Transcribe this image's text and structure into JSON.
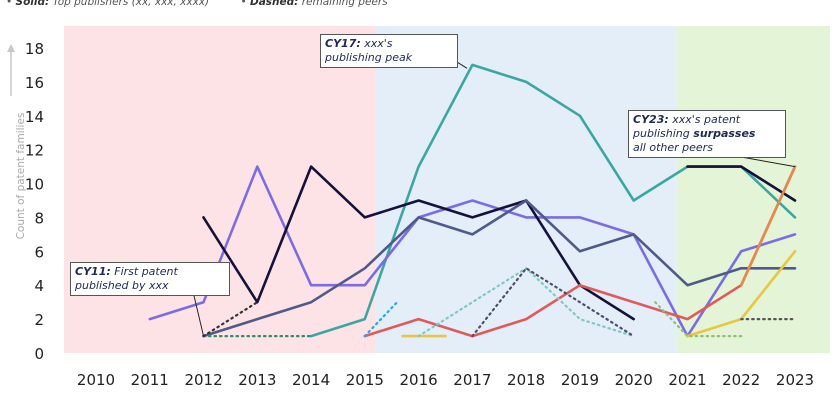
{
  "legend": {
    "solid_label": "Solid:",
    "solid_text": "Top publishers (xx, xxx, xxxx)",
    "dashed_label": "Dashed:",
    "dashed_text": "remaining peers"
  },
  "chart_data": {
    "type": "line",
    "ylabel": "Count of patent families",
    "ylim": [
      0,
      18
    ],
    "yticks": [
      0,
      2,
      4,
      6,
      8,
      10,
      12,
      14,
      16,
      18
    ],
    "x": [
      "2010",
      "2011",
      "2012",
      "2013",
      "2014",
      "2015",
      "2016",
      "2017",
      "2018",
      "2019",
      "2020",
      "2021",
      "2022",
      "2023"
    ],
    "periods": [
      {
        "from": 2010,
        "to": 2015.2,
        "color": "#fde3e6"
      },
      {
        "from": 2015.2,
        "to": 2020.8,
        "color": "#e3eef9"
      },
      {
        "from": 2020.8,
        "to": 2023.4,
        "color": "#e4f4d6"
      }
    ],
    "series": [
      {
        "color": "#3aa8a0",
        "style": "solid",
        "points": [
          [
            2014,
            1
          ],
          [
            2015,
            2
          ],
          [
            2016,
            11
          ],
          [
            2017,
            17
          ],
          [
            2018,
            16
          ],
          [
            2019,
            14
          ],
          [
            2020,
            9
          ],
          [
            2021,
            11
          ],
          [
            2022,
            11
          ],
          [
            2023,
            8
          ]
        ]
      },
      {
        "color": "#7b6be8",
        "style": "solid",
        "points": [
          [
            2011,
            2
          ],
          [
            2012,
            3
          ],
          [
            2013,
            11
          ],
          [
            2014,
            4
          ],
          [
            2015,
            4
          ],
          [
            2016,
            8
          ],
          [
            2017,
            9
          ],
          [
            2018,
            8
          ],
          [
            2019,
            8
          ],
          [
            2020,
            7
          ],
          [
            2021,
            1
          ],
          [
            2022,
            6
          ],
          [
            2023,
            7
          ]
        ]
      },
      {
        "color": "#15123a",
        "style": "solid",
        "points": [
          [
            2012,
            8
          ],
          [
            2013,
            3
          ],
          [
            2014,
            11
          ],
          [
            2015,
            8
          ],
          [
            2016,
            9
          ],
          [
            2017,
            8
          ],
          [
            2018,
            9
          ],
          [
            2019,
            4
          ],
          [
            2020,
            2
          ]
        ]
      },
      {
        "color": "#15123a",
        "style": "solid",
        "points": [
          [
            2021,
            11
          ],
          [
            2022,
            11
          ],
          [
            2023,
            9
          ]
        ]
      },
      {
        "color": "#4f5a8a",
        "style": "solid",
        "points": [
          [
            2012,
            1
          ],
          [
            2013,
            2
          ],
          [
            2014,
            3
          ],
          [
            2015,
            5
          ],
          [
            2016,
            8
          ],
          [
            2017,
            7
          ],
          [
            2018,
            9
          ],
          [
            2019,
            6
          ],
          [
            2020,
            7
          ],
          [
            2021,
            4
          ],
          [
            2022,
            5
          ],
          [
            2023,
            5
          ]
        ]
      },
      {
        "color": "#e05a5a",
        "style": "solid",
        "points": [
          [
            2015,
            1
          ],
          [
            2016,
            2
          ],
          [
            2017,
            1
          ],
          [
            2018,
            2
          ],
          [
            2019,
            4
          ],
          [
            2020,
            3
          ],
          [
            2021,
            2
          ],
          [
            2022,
            4
          ],
          [
            2023,
            11
          ]
        ]
      },
      {
        "color": "#e8884a",
        "style": "solid",
        "points": [
          [
            2022,
            4
          ],
          [
            2023,
            11
          ]
        ]
      },
      {
        "color": "#e6c840",
        "style": "solid",
        "points": [
          [
            2015.7,
            1
          ],
          [
            2016.5,
            1
          ]
        ]
      },
      {
        "color": "#e6c840",
        "style": "solid",
        "points": [
          [
            2021,
            1
          ],
          [
            2022,
            2
          ],
          [
            2023,
            6
          ]
        ]
      },
      {
        "color": "#2a8f6a",
        "style": "dotted",
        "points": [
          [
            2012,
            1
          ],
          [
            2013,
            1
          ],
          [
            2014,
            1
          ]
        ]
      },
      {
        "color": "#333333",
        "style": "dotted",
        "points": [
          [
            2012,
            1
          ],
          [
            2013,
            3
          ]
        ]
      },
      {
        "color": "#2aa8d8",
        "style": "dotted",
        "points": [
          [
            2015,
            1
          ],
          [
            2015.6,
            3
          ]
        ]
      },
      {
        "color": "#7fc9c0",
        "style": "dotted",
        "points": [
          [
            2016,
            1
          ],
          [
            2017,
            3
          ],
          [
            2018,
            5
          ],
          [
            2019,
            2
          ],
          [
            2020,
            1
          ]
        ]
      },
      {
        "color": "#4a4f6a",
        "style": "dotted",
        "points": [
          [
            2017,
            1
          ],
          [
            2018,
            5
          ],
          [
            2019,
            3
          ],
          [
            2020,
            1
          ]
        ]
      },
      {
        "color": "#8fbf7a",
        "style": "dotted",
        "points": [
          [
            2020.4,
            3
          ],
          [
            2021,
            1
          ],
          [
            2022,
            1
          ]
        ]
      },
      {
        "color": "#555555",
        "style": "dotted",
        "points": [
          [
            2022,
            2
          ],
          [
            2023,
            2
          ]
        ]
      }
    ]
  },
  "annotations": {
    "cy11": {
      "label": "CY11:",
      "line1": " First patent",
      "line2": "published by xxx"
    },
    "cy17": {
      "label": "CY17:",
      "line1": " xxx's",
      "line2": "publishing peak"
    },
    "cy23": {
      "label": "CY23:",
      "line1": " xxx's patent",
      "line2a": "publishing ",
      "line2b": "surpasses",
      "line3": "all other peers"
    }
  }
}
